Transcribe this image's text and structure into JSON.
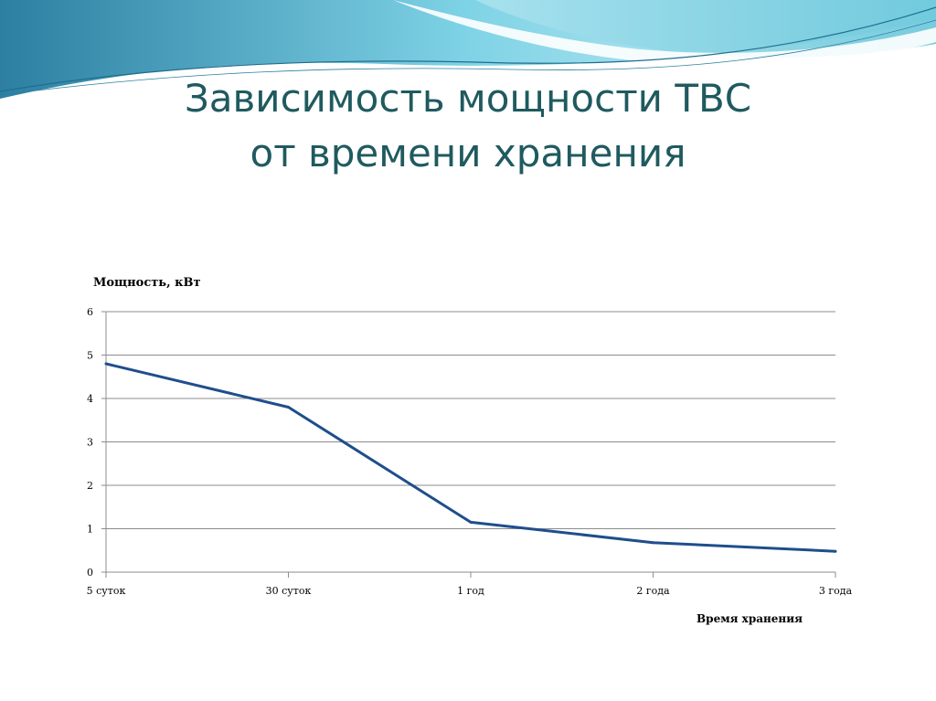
{
  "slide": {
    "title_line1": "Зависимость мощности ТВС",
    "title_line2": "от времени хранения"
  },
  "colors": {
    "title": "#1f5a5f",
    "series_line": "#1f4e8c",
    "grid": "#8c8c8c",
    "wave_light": "#aee3ef",
    "wave_mid": "#5fc3d8",
    "wave_dark": "#2c7fa1"
  },
  "chart_data": {
    "type": "line",
    "title": "",
    "ylabel": "Мощность, кВт",
    "xlabel": "Время хранения",
    "categories": [
      "5 суток",
      "30 суток",
      "1 год",
      "2 года",
      "3 года"
    ],
    "series": [
      {
        "values": [
          4.8,
          3.8,
          1.15,
          0.68,
          0.48
        ]
      }
    ],
    "ylim": [
      0,
      6
    ],
    "yticks": [
      0,
      1,
      2,
      3,
      4,
      5,
      6
    ],
    "grid": true
  }
}
